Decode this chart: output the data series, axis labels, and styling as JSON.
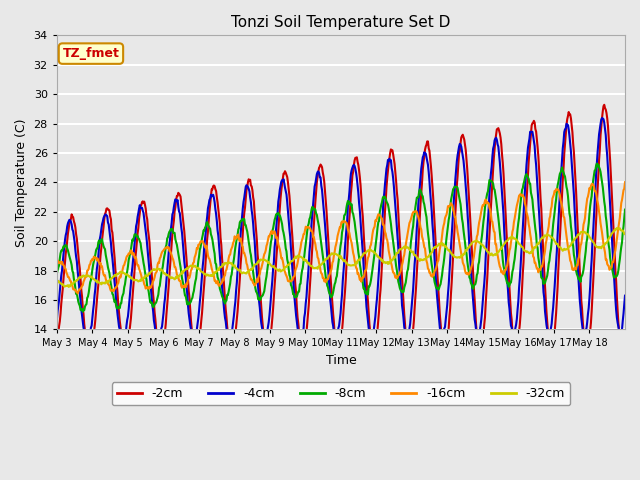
{
  "title": "Tonzi Soil Temperature Set D",
  "xlabel": "Time",
  "ylabel": "Soil Temperature (C)",
  "ylim": [
    14,
    34
  ],
  "n_days": 16,
  "background_color": "#e8e8e8",
  "plot_bg_color": "#e8e8e8",
  "grid_color": "#ffffff",
  "legend_label": "TZ_fmet",
  "legend_bg": "#ffffcc",
  "legend_border": "#cc8800",
  "legend_text_color": "#cc0000",
  "series": {
    "-2cm": {
      "color": "#cc0000",
      "lw": 1.5
    },
    "-4cm": {
      "color": "#0000cc",
      "lw": 1.5
    },
    "-8cm": {
      "color": "#00aa00",
      "lw": 1.5
    },
    "-16cm": {
      "color": "#ff8800",
      "lw": 1.5
    },
    "-32cm": {
      "color": "#cccc00",
      "lw": 1.5
    }
  },
  "tick_labels": [
    "May 3",
    "May 4",
    "May 5",
    "May 6",
    "May 7",
    "May 8",
    "May 9",
    "May 10",
    "May 11",
    "May 12",
    "May 13",
    "May 14",
    "May 15",
    "May 16",
    "May 17",
    "May 18"
  ],
  "yticks": [
    14,
    16,
    18,
    20,
    22,
    24,
    26,
    28,
    30,
    32,
    34
  ]
}
